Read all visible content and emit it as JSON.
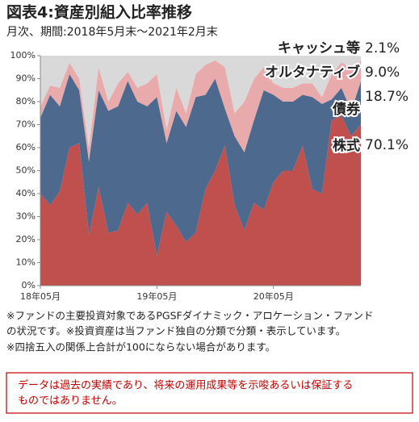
{
  "chart_data": {
    "type": "stacked_area",
    "title": "図表4:資産別組入比率推移",
    "subtitle": "月次、期間:2018年5月末〜2021年2月末",
    "categories": [
      "18年05月",
      null,
      null,
      null,
      null,
      null,
      null,
      null,
      null,
      null,
      null,
      null,
      "19年05月",
      null,
      null,
      null,
      null,
      null,
      null,
      null,
      null,
      null,
      null,
      null,
      "20年05月",
      null,
      null,
      null,
      null,
      null,
      null,
      null,
      null,
      null
    ],
    "series": [
      {
        "name": "株式",
        "color": "#c0504d",
        "values": [
          40,
          35,
          41,
          60,
          62,
          22,
          43,
          23,
          24,
          36,
          31,
          36,
          13,
          32,
          26,
          19,
          23,
          42,
          50,
          61,
          35,
          24,
          36,
          33,
          45,
          50,
          50,
          61,
          42,
          40,
          72,
          74,
          65,
          70.1
        ],
        "value_labels": [
          null,
          null,
          null,
          null,
          null,
          null,
          null,
          null,
          null,
          null,
          null,
          null,
          null,
          null,
          null,
          null,
          null,
          null,
          null,
          null,
          null,
          null,
          null,
          null,
          null,
          null,
          null,
          null,
          null,
          null,
          null,
          null,
          null,
          "70.1%"
        ]
      },
      {
        "name": "債券",
        "color": "#4d6a8e",
        "values": [
          33,
          48,
          37,
          32,
          23,
          32,
          42,
          53,
          54,
          53,
          49,
          42,
          69,
          30,
          50,
          50,
          59,
          41,
          40,
          16,
          30,
          34,
          36,
          52,
          38,
          30,
          30,
          22,
          40,
          39,
          9,
          12,
          11,
          18.7
        ],
        "value_labels": [
          null,
          null,
          null,
          null,
          null,
          null,
          null,
          null,
          null,
          null,
          null,
          null,
          null,
          null,
          null,
          null,
          null,
          null,
          null,
          null,
          null,
          null,
          null,
          null,
          null,
          null,
          null,
          null,
          null,
          null,
          null,
          null,
          null,
          "18.7%"
        ]
      },
      {
        "name": "オルタナティブ",
        "color": "#e8aaab",
        "values": [
          5,
          4,
          8,
          5,
          5,
          6,
          10,
          4,
          10,
          4,
          6,
          10,
          10,
          6,
          10,
          6,
          10,
          13,
          8,
          18,
          10,
          22,
          18,
          10,
          5,
          6,
          6,
          5,
          6,
          3,
          11,
          11,
          19,
          9.0
        ],
        "value_labels": [
          null,
          null,
          null,
          null,
          null,
          null,
          null,
          null,
          null,
          null,
          null,
          null,
          null,
          null,
          null,
          null,
          null,
          null,
          null,
          null,
          null,
          null,
          null,
          null,
          null,
          null,
          null,
          null,
          null,
          null,
          null,
          null,
          null,
          "9.0%"
        ]
      },
      {
        "name": "キャッシュ等",
        "color": "#d9d9d9",
        "values": [
          22,
          13,
          14,
          3,
          10,
          40,
          5,
          20,
          12,
          7,
          14,
          12,
          8,
          32,
          14,
          25,
          8,
          4,
          2,
          5,
          25,
          20,
          10,
          5,
          12,
          14,
          14,
          12,
          12,
          18,
          8,
          3,
          5,
          2.1
        ],
        "value_labels": [
          null,
          null,
          null,
          null,
          null,
          null,
          null,
          null,
          null,
          null,
          null,
          null,
          null,
          null,
          null,
          null,
          null,
          null,
          null,
          null,
          null,
          null,
          null,
          null,
          null,
          null,
          null,
          null,
          null,
          null,
          null,
          null,
          null,
          "2.1%"
        ]
      }
    ],
    "ylim": [
      0,
      100
    ],
    "yticks": [
      {
        "value": 0,
        "label": "0%"
      },
      {
        "value": 10,
        "label": "10%"
      },
      {
        "value": 20,
        "label": "20%"
      },
      {
        "value": 30,
        "label": "30%"
      },
      {
        "value": 40,
        "label": "40%"
      },
      {
        "value": 50,
        "label": "50%"
      },
      {
        "value": 60,
        "label": "60%"
      },
      {
        "value": 70,
        "label": "70%"
      },
      {
        "value": 80,
        "label": "80%"
      },
      {
        "value": 90,
        "label": "90%"
      },
      {
        "value": 100,
        "label": "100%"
      }
    ],
    "grid": false,
    "notes": [
      "※ファンドの主要投資対象であるPGSFダイナミック・アロケーション・ファンド",
      "の状況です。※投資資産は当ファンド独自の分類で分類・表示しています。",
      "※四捨五入の関係上合計が100にならない場合があります。"
    ],
    "disclaimer": [
      "データは過去の実績であり、将来の運用成果等を示唆あるいは保証する",
      "ものではありません。"
    ]
  }
}
